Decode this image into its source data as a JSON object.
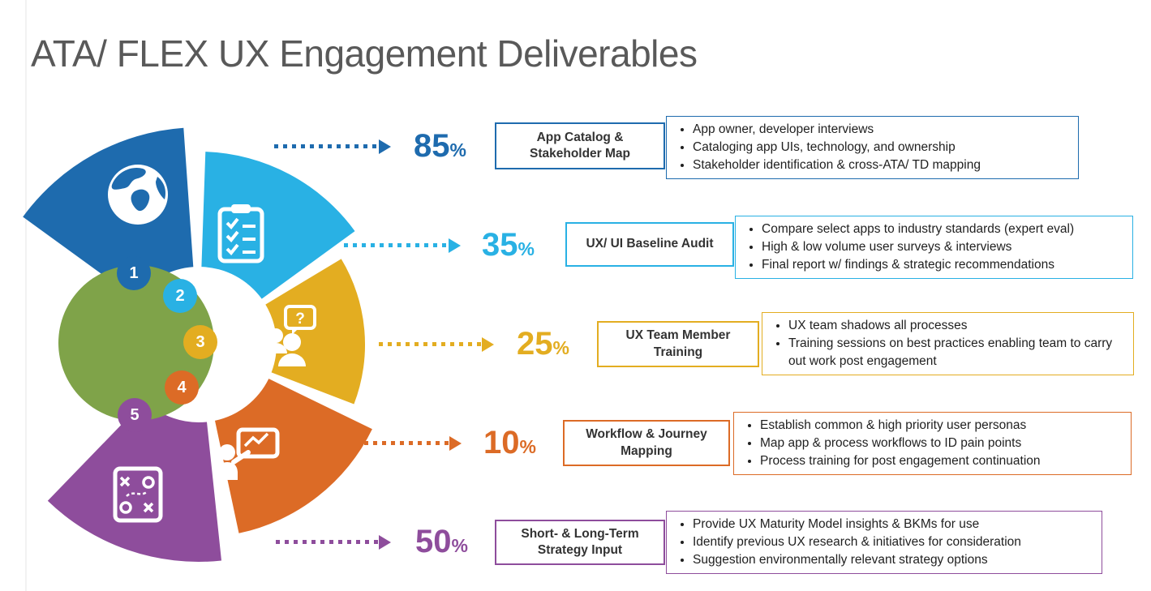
{
  "title": "ATA/ FLEX UX Engagement Deliverables",
  "wheel": {
    "center_color": "#7FA349",
    "segments": [
      {
        "number": "1",
        "color": "#1E6BAE",
        "icon": "globe-icon"
      },
      {
        "number": "2",
        "color": "#29B1E4",
        "icon": "checklist-icon"
      },
      {
        "number": "3",
        "color": "#E3AD21",
        "icon": "team-question-icon"
      },
      {
        "number": "4",
        "color": "#DC6B26",
        "icon": "presenter-icon"
      },
      {
        "number": "5",
        "color": "#8E4D9C",
        "icon": "strategy-icon"
      }
    ]
  },
  "rows": [
    {
      "percent": "85",
      "percent_suffix": "%",
      "color": "#1E6BAE",
      "label": "App Catalog & Stakeholder Map",
      "bullets": [
        "App owner, developer interviews",
        "Cataloging app UIs, technology, and ownership",
        "Stakeholder identification & cross-ATA/ TD mapping"
      ]
    },
    {
      "percent": "35",
      "percent_suffix": "%",
      "color": "#29B1E4",
      "label": "UX/ UI Baseline Audit",
      "bullets": [
        "Compare select apps to industry standards (expert eval)",
        "High & low volume user surveys & interviews",
        "Final report w/ findings & strategic recommendations"
      ]
    },
    {
      "percent": "25",
      "percent_suffix": "%",
      "color": "#E3AD21",
      "label": "UX Team Member Training",
      "bullets": [
        "UX team shadows all processes",
        "Training sessions on best practices enabling team to carry out work post engagement"
      ]
    },
    {
      "percent": "10",
      "percent_suffix": "%",
      "color": "#DC6B26",
      "label": "Workflow & Journey Mapping",
      "bullets": [
        "Establish common & high priority user personas",
        "Map app & process workflows to ID pain points",
        "Process training for post engagement continuation"
      ]
    },
    {
      "percent": "50",
      "percent_suffix": "%",
      "color": "#8E4D9C",
      "label": "Short- & Long-Term Strategy Input",
      "bullets": [
        "Provide UX Maturity Model insights & BKMs for use",
        "Identify previous UX research & initiatives for consideration",
        "Suggestion environmentally relevant strategy options"
      ]
    }
  ]
}
